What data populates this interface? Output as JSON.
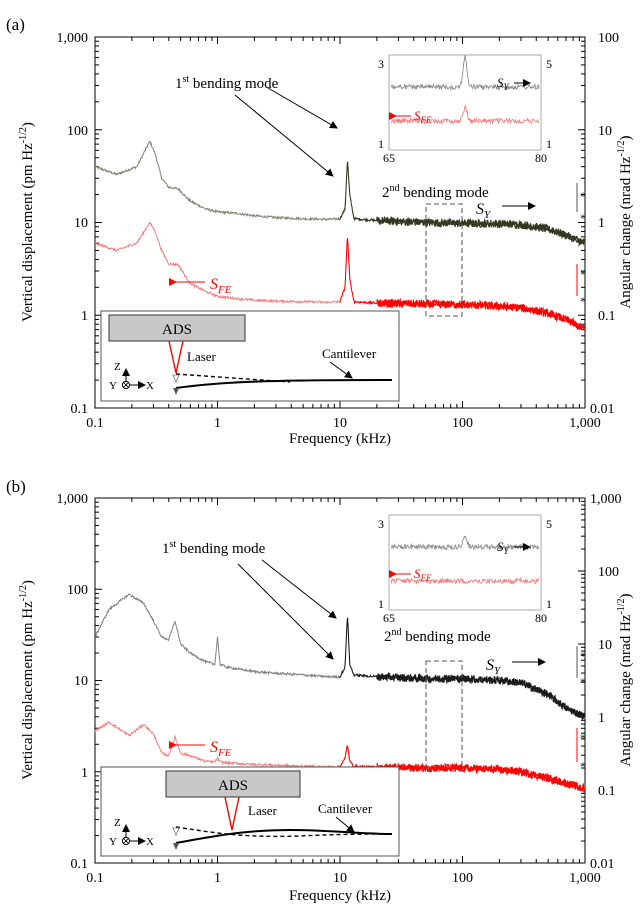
{
  "chart_data": [
    {
      "panel_label": "(a)",
      "type": "line",
      "x_scale": "log",
      "y_scale": "log",
      "xlim": [
        0.1,
        1000
      ],
      "ylim": [
        0.1,
        1000
      ],
      "y2lim": [
        0.01,
        100
      ],
      "x_ticks": [
        "0.1",
        "1",
        "10",
        "100",
        "1,000"
      ],
      "y_ticks": [
        "0.1",
        "1",
        "10",
        "100",
        "1,000"
      ],
      "y2_ticks": [
        "0.01",
        "0.1",
        "1",
        "10",
        "100"
      ],
      "xlabel": "Frequency (kHz)",
      "ylabel": "Vertical displacement (pm Hz",
      "ylabel_sup": "-1/2",
      "ylabel_end": ")",
      "y2label": "Angular change (nrad Hz",
      "y2label_sup": "-1/2",
      "y2label_end": ")",
      "series": [
        {
          "name": "S_Y",
          "label_main": "S",
          "label_sub": "Y",
          "color": "#333820",
          "light_color": "#7d8270",
          "x": [
            0.1,
            0.15,
            0.22,
            0.28,
            0.31,
            0.35,
            0.4,
            0.48,
            0.55,
            0.6,
            0.8,
            1.0,
            1.5,
            2.0,
            3.0,
            5.0,
            8.0,
            10.0,
            11.0,
            11.5,
            12.0,
            13.0,
            20.0,
            50.0,
            100.0,
            200.0,
            300.0,
            500.0,
            700.0,
            1000.0
          ],
          "y": [
            40,
            33,
            40,
            75,
            55,
            30,
            24,
            23,
            19,
            17,
            14,
            13,
            12.5,
            11.8,
            11.3,
            11,
            10.8,
            11,
            14,
            48,
            20,
            11,
            10.5,
            10,
            9.8,
            9.7,
            9.5,
            8.5,
            7.3,
            6
          ]
        },
        {
          "name": "S_FE",
          "label_main": "S",
          "label_sub": "FE",
          "color": "#ff0000",
          "light_color": "#f47e7e",
          "x": [
            0.1,
            0.15,
            0.22,
            0.28,
            0.31,
            0.35,
            0.4,
            0.48,
            0.55,
            0.6,
            0.8,
            1.0,
            1.5,
            2.0,
            3.0,
            5.0,
            8.0,
            10.0,
            11.0,
            11.5,
            12.0,
            13.0,
            20.0,
            50.0,
            100.0,
            200.0,
            300.0,
            500.0,
            700.0,
            1000.0
          ],
          "y": [
            6,
            5,
            6,
            10,
            8,
            5,
            3.6,
            3.5,
            2.6,
            2.2,
            1.8,
            1.6,
            1.5,
            1.45,
            1.42,
            1.4,
            1.38,
            1.4,
            2.0,
            7.5,
            2.5,
            1.4,
            1.35,
            1.32,
            1.3,
            1.25,
            1.2,
            1.05,
            0.9,
            0.7
          ]
        }
      ],
      "annotations": {
        "mode1": "1",
        "mode1_sup": "st",
        "mode1_rest": " bending mode",
        "mode2": "2",
        "mode2_sup": "nd",
        "mode2_rest": " bending mode",
        "star": "*"
      },
      "inset": {
        "x_ticks": [
          "65",
          "80"
        ],
        "y_left_ticks": [
          "3",
          "1"
        ],
        "y_right_ticks": [
          "5",
          "1"
        ]
      },
      "schematic": {
        "ads_label": "ADS",
        "laser_label": "Laser",
        "cantilever_label": "Cantilever",
        "axis_z": "Z",
        "axis_y": "Y",
        "axis_x": "X"
      }
    },
    {
      "panel_label": "(b)",
      "type": "line",
      "x_scale": "log",
      "y_scale": "log",
      "xlim": [
        0.1,
        1000
      ],
      "ylim": [
        0.1,
        1000
      ],
      "y2lim": [
        0.01,
        1000
      ],
      "x_ticks": [
        "0.1",
        "1",
        "10",
        "100",
        "1,000"
      ],
      "y_ticks": [
        "0.1",
        "1",
        "10",
        "100",
        "1,000"
      ],
      "y2_ticks": [
        "0.01",
        "0.1",
        "1",
        "10",
        "100",
        "1,000"
      ],
      "xlabel": "Frequency (kHz)",
      "ylabel": "Vertical displacement (pm Hz",
      "ylabel_sup": "-1/2",
      "ylabel_end": ")",
      "y2label": "Angular change (nrad Hz",
      "y2label_sup": "-1/2",
      "y2label_end": ")",
      "series": [
        {
          "name": "S_Y",
          "label_main": "S",
          "label_sub": "Y",
          "color": "#1a1a1a",
          "light_color": "#808080",
          "x": [
            0.1,
            0.13,
            0.19,
            0.25,
            0.3,
            0.35,
            0.4,
            0.45,
            0.5,
            0.6,
            0.8,
            0.95,
            1.0,
            1.05,
            1.2,
            2.0,
            3.0,
            5.0,
            8.0,
            10.0,
            11.0,
            11.5,
            12.0,
            13.0,
            20.0,
            50.0,
            100.0,
            200.0,
            300.0,
            500.0,
            700.0,
            1000.0
          ],
          "y": [
            30,
            60,
            88,
            70,
            45,
            30,
            28,
            45,
            25,
            20,
            16,
            15,
            30,
            15,
            14,
            12.5,
            12,
            11.5,
            11,
            11,
            14,
            55,
            15,
            11.5,
            11,
            10.5,
            10.5,
            10,
            9.5,
            7,
            5,
            4
          ],
          "x_label_note": "x values in kHz"
        },
        {
          "name": "S_FE",
          "label_main": "S",
          "label_sub": "FE",
          "color": "#ff0000",
          "light_color": "#f47e7e",
          "x": [
            0.1,
            0.13,
            0.19,
            0.25,
            0.3,
            0.35,
            0.4,
            0.45,
            0.5,
            0.6,
            0.8,
            0.95,
            1.0,
            1.05,
            1.2,
            2.0,
            3.0,
            5.0,
            8.0,
            10.0,
            11.0,
            11.5,
            12.0,
            13.0,
            20.0,
            50.0,
            100.0,
            200.0,
            300.0,
            500.0,
            700.0,
            1000.0
          ],
          "y": [
            2.8,
            3.5,
            2.5,
            3.3,
            2.6,
            1.6,
            1.5,
            2.4,
            1.6,
            1.5,
            1.3,
            1.28,
            1.4,
            1.28,
            1.25,
            1.2,
            1.18,
            1.15,
            1.13,
            1.15,
            1.4,
            2.0,
            1.3,
            1.15,
            1.12,
            1.1,
            1.1,
            1.05,
            1.0,
            0.85,
            0.75,
            0.65
          ]
        }
      ],
      "annotations": {
        "mode1": "1",
        "mode1_sup": "st",
        "mode1_rest": " bending mode",
        "mode2": "2",
        "mode2_sup": "nd",
        "mode2_rest": " bending mode",
        "star": "*"
      },
      "inset": {
        "x_ticks": [
          "65",
          "80"
        ],
        "y_left_ticks": [
          "3",
          "1"
        ],
        "y_right_ticks": [
          "5",
          "1"
        ]
      },
      "schematic": {
        "ads_label": "ADS",
        "laser_label": "Laser",
        "cantilever_label": "Cantilever",
        "axis_z": "Z",
        "axis_y": "Y",
        "axis_x": "X"
      }
    }
  ]
}
